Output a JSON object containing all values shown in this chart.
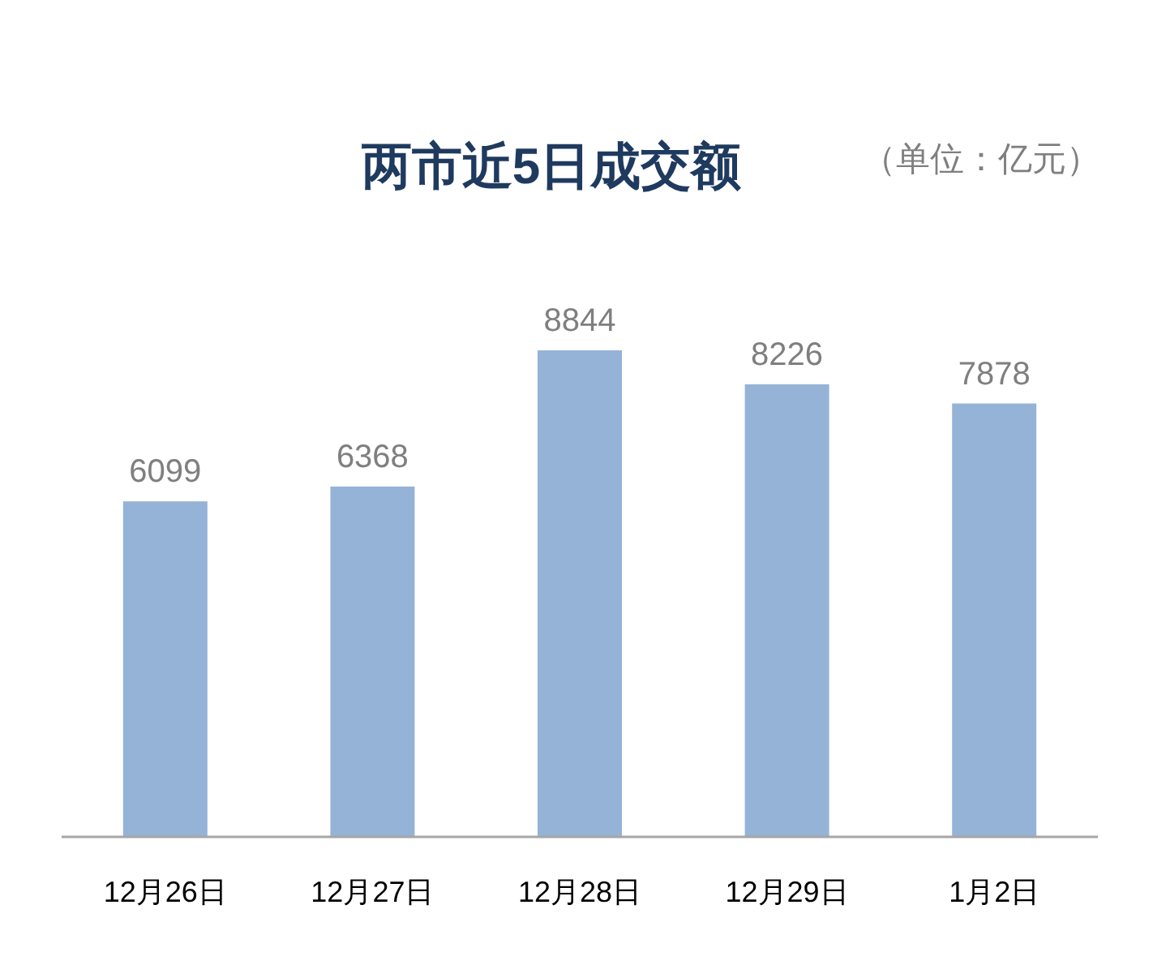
{
  "chart_data": {
    "type": "bar",
    "title": "两市近5日成交额",
    "annotations": [
      "（单位：亿元）"
    ],
    "categories": [
      "12月26日",
      "12月27日",
      "12月28日",
      "12月29日",
      "1月2日"
    ],
    "values": [
      6099,
      6368,
      8844,
      8226,
      7878
    ],
    "color": "#95b3d7",
    "data_labels": true
  }
}
